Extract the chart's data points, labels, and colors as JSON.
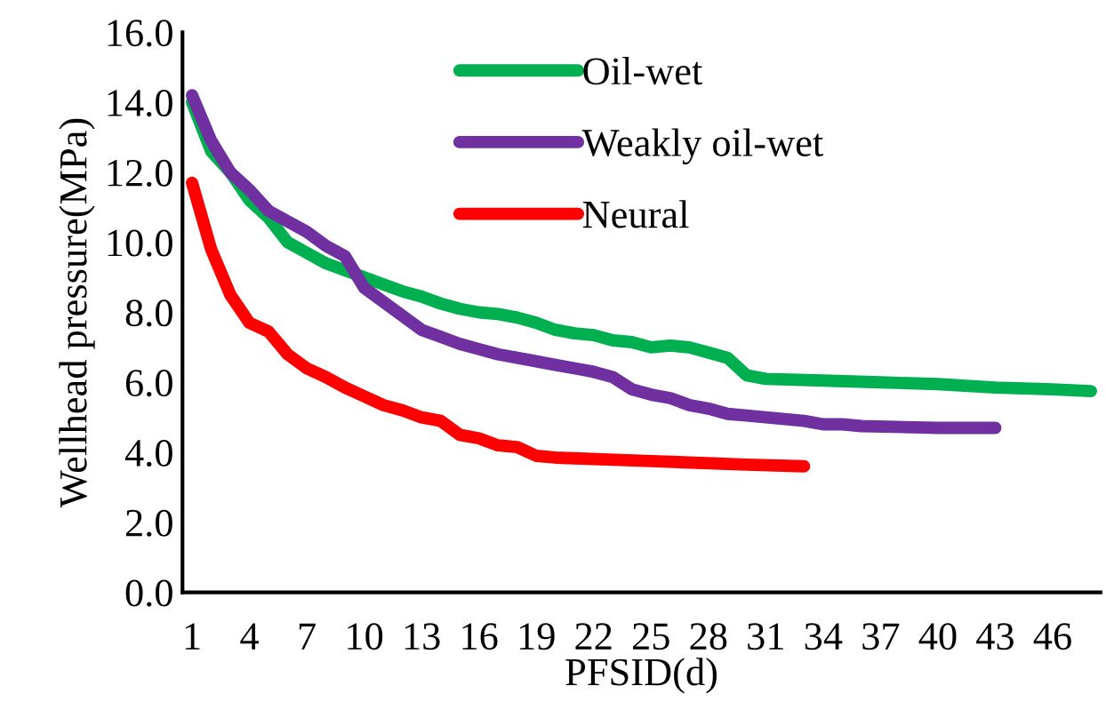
{
  "chart_data": {
    "type": "line",
    "xlabel": "PFSID(d)",
    "ylabel": "Wellhead pressure(MPa)",
    "xlim": [
      0.5,
      48.5
    ],
    "xticks": [
      1,
      4,
      7,
      10,
      13,
      16,
      19,
      22,
      25,
      28,
      31,
      34,
      37,
      40,
      43,
      46
    ],
    "ylim": [
      0,
      16
    ],
    "yticks": [
      {
        "value": 0,
        "label": "0.0"
      },
      {
        "value": 2,
        "label": "2.0"
      },
      {
        "value": 4,
        "label": "4.0"
      },
      {
        "value": 6,
        "label": "6.0"
      },
      {
        "value": 8,
        "label": "8.0"
      },
      {
        "value": 10,
        "label": "10.0"
      },
      {
        "value": 12,
        "label": "12.0"
      },
      {
        "value": 14,
        "label": "14.0"
      },
      {
        "value": 16,
        "label": "16.0"
      }
    ],
    "grid": false,
    "legend": "top",
    "marker": "none",
    "line_style": "solid",
    "series": [
      {
        "name": "Oil-wet",
        "color": "#00b050",
        "x": [
          1,
          2,
          3,
          4,
          5,
          6,
          7,
          8,
          9,
          10,
          11,
          12,
          13,
          14,
          15,
          16,
          17,
          18,
          19,
          20,
          21,
          22,
          23,
          24,
          25,
          26,
          27,
          28,
          29,
          30,
          31,
          34,
          37,
          40,
          43,
          46,
          48
        ],
        "values": [
          14.0,
          12.6,
          12.0,
          11.2,
          10.7,
          10.0,
          9.7,
          9.4,
          9.2,
          9.0,
          8.8,
          8.6,
          8.45,
          8.25,
          8.1,
          8.0,
          7.95,
          7.85,
          7.7,
          7.5,
          7.4,
          7.35,
          7.2,
          7.15,
          7.0,
          7.05,
          7.0,
          6.85,
          6.7,
          6.2,
          6.1,
          6.05,
          6.0,
          5.95,
          5.85,
          5.8,
          5.75
        ]
      },
      {
        "name": "Weakly oil-wet",
        "color": "#7030a0",
        "x": [
          1,
          2,
          3,
          4,
          5,
          6,
          7,
          8,
          9,
          10,
          11,
          12,
          13,
          14,
          15,
          16,
          17,
          18,
          19,
          20,
          21,
          22,
          23,
          24,
          25,
          26,
          27,
          28,
          29,
          30,
          31,
          32,
          33,
          34,
          35,
          36,
          40,
          43
        ],
        "values": [
          14.2,
          12.9,
          12.0,
          11.5,
          10.9,
          10.6,
          10.3,
          9.9,
          9.6,
          8.7,
          8.3,
          7.9,
          7.5,
          7.3,
          7.1,
          6.95,
          6.8,
          6.7,
          6.6,
          6.5,
          6.4,
          6.3,
          6.15,
          5.8,
          5.65,
          5.55,
          5.35,
          5.25,
          5.1,
          5.05,
          5.0,
          4.95,
          4.9,
          4.8,
          4.8,
          4.75,
          4.7,
          4.7
        ]
      },
      {
        "name": "Neural",
        "color": "#ff0000",
        "x": [
          1,
          2,
          3,
          4,
          5,
          6,
          7,
          8,
          9,
          10,
          11,
          12,
          13,
          14,
          15,
          16,
          17,
          18,
          19,
          20,
          25,
          30,
          33
        ],
        "values": [
          11.7,
          9.8,
          8.5,
          7.7,
          7.45,
          6.8,
          6.4,
          6.15,
          5.85,
          5.6,
          5.35,
          5.2,
          5.0,
          4.9,
          4.5,
          4.4,
          4.2,
          4.15,
          3.9,
          3.85,
          3.75,
          3.65,
          3.6
        ]
      }
    ]
  }
}
